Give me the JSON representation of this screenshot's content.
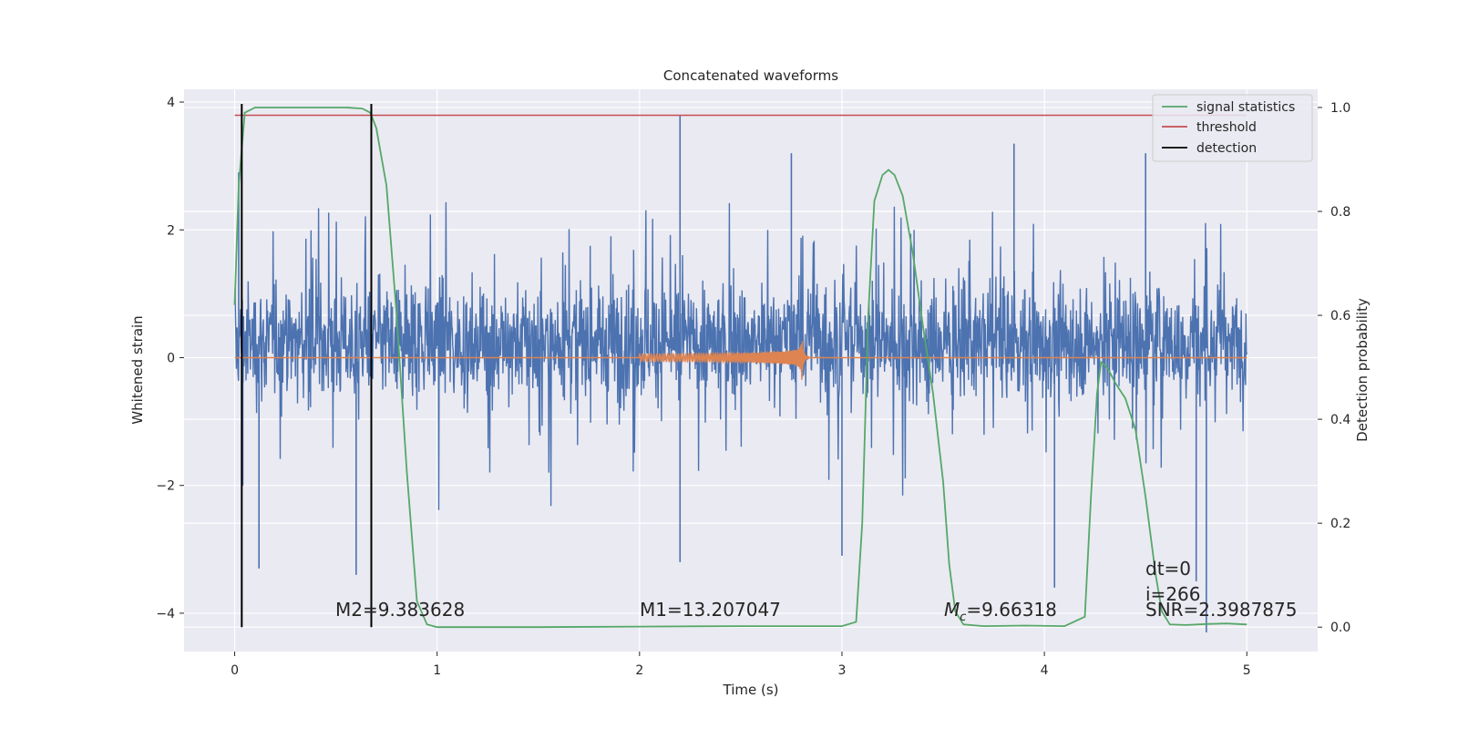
{
  "chart_data": {
    "type": "line",
    "title": "Concatenated waveforms",
    "xlabel": "Time (s)",
    "ylabel": "Whitened strain",
    "y2label": "Detection probability",
    "xlim": [
      -0.25,
      5.35
    ],
    "ylim": [
      -4.6,
      4.2
    ],
    "y2lim": [
      -0.047,
      1.035
    ],
    "xticks": [
      0,
      1,
      2,
      3,
      4,
      5
    ],
    "yticks": [
      -4,
      -2,
      0,
      2,
      4
    ],
    "y2ticks": [
      0.0,
      0.2,
      0.4,
      0.6,
      0.8,
      1.0
    ],
    "xtick_labels": [
      "0",
      "1",
      "2",
      "3",
      "4",
      "5"
    ],
    "ytick_labels": [
      "−4",
      "−2",
      "0",
      "2",
      "4"
    ],
    "y2tick_labels": [
      "0.0",
      "0.2",
      "0.4",
      "0.6",
      "0.8",
      "1.0"
    ],
    "grid": true,
    "legend_position": "top-right",
    "legend": [
      "signal statistics",
      "threshold",
      "detection"
    ],
    "colors": {
      "noise": "#4c72b0",
      "template": "#dd8452",
      "signal_statistics": "#55a868",
      "threshold": "#c44e52",
      "detection": "#000000",
      "plot_background": "#eaeaf2"
    },
    "noise_strain": {
      "x_range": [
        0,
        5
      ],
      "envelope_typical": [
        -1.6,
        2.2
      ],
      "spikes": [
        {
          "x": 0.02,
          "y": 2.9
        },
        {
          "x": 0.04,
          "y": -2.0
        },
        {
          "x": 0.12,
          "y": -3.3
        },
        {
          "x": 0.6,
          "y": -3.4
        },
        {
          "x": 2.2,
          "y": 3.8
        },
        {
          "x": 2.2,
          "y": -3.2
        },
        {
          "x": 2.75,
          "y": 3.2
        },
        {
          "x": 3.0,
          "y": -3.1
        },
        {
          "x": 3.85,
          "y": 3.35
        },
        {
          "x": 4.05,
          "y": -3.6
        },
        {
          "x": 4.5,
          "y": 3.2
        },
        {
          "x": 4.75,
          "y": -3.5
        },
        {
          "x": 4.8,
          "y": -4.3
        }
      ]
    },
    "template_waveform": {
      "x_start": 2.0,
      "x_merger": 2.8,
      "x_end": 2.85,
      "peak_amplitude": 0.45
    },
    "signal_statistics": {
      "x": [
        0,
        0.02,
        0.05,
        0.1,
        0.3,
        0.55,
        0.63,
        0.67,
        0.7,
        0.75,
        0.8,
        0.85,
        0.9,
        0.95,
        1.0,
        1.5,
        2.0,
        2.5,
        3.0,
        3.07,
        3.1,
        3.13,
        3.16,
        3.2,
        3.23,
        3.26,
        3.3,
        3.35,
        3.4,
        3.45,
        3.5,
        3.53,
        3.56,
        3.6,
        3.7,
        3.9,
        4.1,
        4.2,
        4.23,
        4.26,
        4.28,
        4.31,
        4.35,
        4.4,
        4.45,
        4.5,
        4.55,
        4.58,
        4.62,
        4.7,
        4.8,
        4.9,
        5.0
      ],
      "y": [
        0.62,
        0.85,
        0.99,
        1.0,
        1.0,
        1.0,
        0.998,
        0.99,
        0.96,
        0.85,
        0.6,
        0.3,
        0.05,
        0.005,
        0.0,
        0.0,
        0.001,
        0.002,
        0.002,
        0.01,
        0.2,
        0.6,
        0.82,
        0.87,
        0.88,
        0.87,
        0.83,
        0.72,
        0.58,
        0.45,
        0.28,
        0.12,
        0.03,
        0.005,
        0.002,
        0.003,
        0.002,
        0.02,
        0.25,
        0.45,
        0.51,
        0.5,
        0.47,
        0.44,
        0.38,
        0.25,
        0.1,
        0.03,
        0.005,
        0.004,
        0.006,
        0.007,
        0.005
      ]
    },
    "threshold": {
      "x": [
        0,
        5
      ],
      "y": 0.985
    },
    "detections": [
      {
        "x": 0.035,
        "y": [
          0.0,
          1.0
        ]
      },
      {
        "x": 0.675,
        "y": [
          0.0,
          1.0
        ]
      }
    ],
    "annotations": {
      "m2": "M2=9.383628",
      "m1": "M1=13.207047",
      "mc_symbol": "M",
      "mc_sub": "c",
      "mc_value": "=9.66318",
      "dt": "dt=0",
      "i": "i=266",
      "snr": "SNR=2.3987875"
    }
  }
}
